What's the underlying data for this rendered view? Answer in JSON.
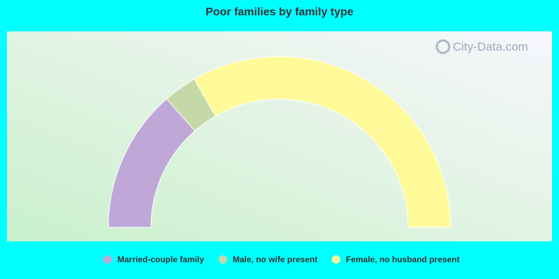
{
  "chart_data": {
    "type": "half-donut",
    "title": "Poor families by family type",
    "watermark": "City-Data.com",
    "categories": [
      "Married-couple family",
      "Male, no wife present",
      "Female, no husband present"
    ],
    "values": [
      27.1,
      6.3,
      66.6
    ],
    "colors": [
      "#bfa8d8",
      "#c5d9a8",
      "#fffa99"
    ]
  }
}
